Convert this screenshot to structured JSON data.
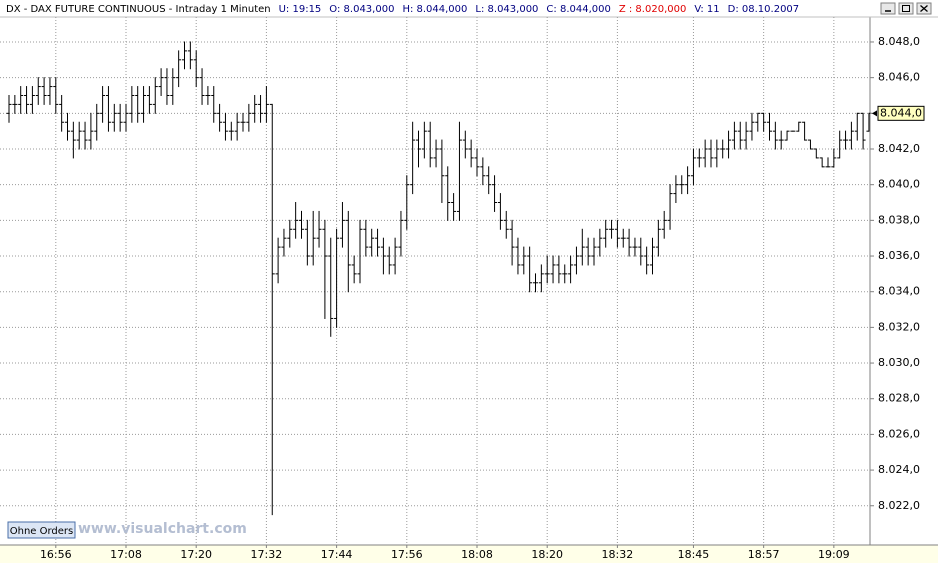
{
  "chart_data": {
    "type": "ohlc",
    "title": "DX - DAX FUTURE CONTINUOUS - Intraday 1 Minuten",
    "info": [
      {
        "text": "U: 19:15",
        "color": "#000080"
      },
      {
        "text": "O: 8.043,000",
        "color": "#000080"
      },
      {
        "text": "H: 8.044,000",
        "color": "#000080"
      },
      {
        "text": "L: 8.043,000",
        "color": "#000080"
      },
      {
        "text": "C: 8.044,000",
        "color": "#000080"
      },
      {
        "text": "Z : 8.020,000",
        "color": "#e00000"
      },
      {
        "text": "V: 11",
        "color": "#000080"
      },
      {
        "text": "D: 08.10.2007",
        "color": "#000080"
      }
    ],
    "watermark": "www.visualchart.com",
    "button": "Ohne Orders",
    "color": "#000000",
    "grid": true,
    "ylim": [
      8019.8,
      8049.4
    ],
    "yticks": [
      {
        "value": 8022,
        "label": "8.022,0"
      },
      {
        "value": 8024,
        "label": "8.024,0"
      },
      {
        "value": 8026,
        "label": "8.026,0"
      },
      {
        "value": 8028,
        "label": "8.028,0"
      },
      {
        "value": 8030,
        "label": "8.030,0"
      },
      {
        "value": 8032,
        "label": "8.032,0"
      },
      {
        "value": 8034,
        "label": "8.034,0"
      },
      {
        "value": 8036,
        "label": "8.036,0"
      },
      {
        "value": 8038,
        "label": "8.038,0"
      },
      {
        "value": 8040,
        "label": "8.040,0"
      },
      {
        "value": 8042,
        "label": "8.042,0"
      },
      {
        "value": 8044,
        "label": "8.044,0"
      },
      {
        "value": 8046,
        "label": "8.046,0"
      },
      {
        "value": 8048,
        "label": "8.048,0"
      }
    ],
    "last_price": {
      "value": 8044,
      "label": "8.044,0"
    },
    "categories": [
      null,
      null,
      null,
      null,
      null,
      null,
      null,
      null,
      "16:56",
      null,
      null,
      null,
      null,
      null,
      null,
      null,
      null,
      null,
      null,
      null,
      "17:08",
      null,
      null,
      null,
      null,
      null,
      null,
      null,
      null,
      null,
      null,
      null,
      "17:20",
      null,
      null,
      null,
      null,
      null,
      null,
      null,
      null,
      null,
      null,
      null,
      "17:32",
      null,
      null,
      null,
      null,
      null,
      null,
      null,
      null,
      null,
      null,
      null,
      "17:44",
      null,
      null,
      null,
      null,
      null,
      null,
      null,
      null,
      null,
      null,
      null,
      "17:56",
      null,
      null,
      null,
      null,
      null,
      null,
      null,
      null,
      null,
      null,
      null,
      "18:08",
      null,
      null,
      null,
      null,
      null,
      null,
      null,
      null,
      null,
      null,
      null,
      "18:20",
      null,
      null,
      null,
      null,
      null,
      null,
      null,
      null,
      null,
      null,
      null,
      "18:32",
      null,
      null,
      null,
      null,
      null,
      null,
      null,
      null,
      null,
      null,
      null,
      null,
      "18:45",
      null,
      null,
      null,
      null,
      null,
      null,
      null,
      null,
      null,
      null,
      null,
      "18:57",
      null,
      null,
      null,
      null,
      null,
      null,
      null,
      null,
      null,
      null,
      null,
      "19:09",
      null,
      null,
      null,
      null,
      null,
      null
    ],
    "bars": [
      [
        8044,
        8045,
        8043.5,
        8044.5
      ],
      [
        8044.5,
        8045,
        8044,
        8044.5
      ],
      [
        8044.5,
        8045.5,
        8044,
        8045
      ],
      [
        8045,
        8045.5,
        8044,
        8044.5
      ],
      [
        8044.5,
        8045.5,
        8044,
        8045
      ],
      [
        8045,
        8046,
        8044.5,
        8045.5
      ],
      [
        8045.5,
        8046,
        8044.5,
        8045
      ],
      [
        8045,
        8046,
        8044.5,
        8045.5
      ],
      [
        8045.5,
        8046,
        8044,
        8044.5
      ],
      [
        8044.5,
        8045,
        8043,
        8043.5
      ],
      [
        8043.5,
        8044,
        8042.5,
        8043
      ],
      [
        8043,
        8043.5,
        8041.5,
        8042.5
      ],
      [
        8042.5,
        8043.5,
        8042,
        8043
      ],
      [
        8043,
        8043.5,
        8042,
        8042.5
      ],
      [
        8042.5,
        8044,
        8042,
        8043
      ],
      [
        8043,
        8044.5,
        8042.5,
        8044
      ],
      [
        8044,
        8045.5,
        8043.5,
        8045
      ],
      [
        8045,
        8045.5,
        8043,
        8043.5
      ],
      [
        8043.5,
        8044.5,
        8043,
        8044
      ],
      [
        8044,
        8044.5,
        8043,
        8043.5
      ],
      [
        8043.5,
        8044.5,
        8043,
        8044
      ],
      [
        8044,
        8045.5,
        8043.5,
        8045
      ],
      [
        8045,
        8045.5,
        8043.5,
        8044
      ],
      [
        8044,
        8045.5,
        8043.5,
        8045
      ],
      [
        8045,
        8045.5,
        8044,
        8044.5
      ],
      [
        8044.5,
        8046,
        8044,
        8045.5
      ],
      [
        8045.5,
        8046.5,
        8045,
        8046
      ],
      [
        8046,
        8046.5,
        8044.5,
        8045
      ],
      [
        8045,
        8046.5,
        8044.5,
        8046
      ],
      [
        8046,
        8047.5,
        8045.5,
        8047
      ],
      [
        8047,
        8048,
        8046.5,
        8047.5
      ],
      [
        8047.5,
        8048,
        8046.5,
        8047
      ],
      [
        8047,
        8047.5,
        8045.5,
        8046
      ],
      [
        8046,
        8046.5,
        8044.5,
        8045
      ],
      [
        8045,
        8045.5,
        8044.5,
        8045
      ],
      [
        8045,
        8045.5,
        8043.5,
        8044
      ],
      [
        8044,
        8044.5,
        8043,
        8043.5
      ],
      [
        8043.5,
        8044,
        8042.5,
        8043
      ],
      [
        8043,
        8043.5,
        8042.5,
        8043
      ],
      [
        8043,
        8044,
        8042.5,
        8043.5
      ],
      [
        8043.5,
        8044,
        8043,
        8043.5
      ],
      [
        8043.5,
        8044.5,
        8043,
        8044
      ],
      [
        8044,
        8045,
        8043.5,
        8044.5
      ],
      [
        8044.5,
        8045,
        8043.5,
        8044
      ],
      [
        8044,
        8045.5,
        8043.5,
        8044.5
      ],
      [
        8044.5,
        8044.5,
        8021.5,
        8035
      ],
      [
        8035,
        8037,
        8034.5,
        8036.5
      ],
      [
        8036.5,
        8037.5,
        8036,
        8037
      ],
      [
        8037,
        8038,
        8036.5,
        8037.5
      ],
      [
        8037.5,
        8039,
        8037,
        8038
      ],
      [
        8038,
        8038.5,
        8037,
        8037.5
      ],
      [
        8037.5,
        8038,
        8035.5,
        8036
      ],
      [
        8036,
        8038.5,
        8035.5,
        8037
      ],
      [
        8037,
        8038.5,
        8036.5,
        8037.5
      ],
      [
        8037.5,
        8038,
        8032.5,
        8036
      ],
      [
        8036,
        8037,
        8031.5,
        8032.5
      ],
      [
        8032.5,
        8037.5,
        8032,
        8037
      ],
      [
        8037,
        8039,
        8036.5,
        8038
      ],
      [
        8038,
        8038.5,
        8034,
        8035.5
      ],
      [
        8035.5,
        8036,
        8034.5,
        8035
      ],
      [
        8035,
        8038,
        8034.5,
        8037.5
      ],
      [
        8037.5,
        8038,
        8036,
        8036.5
      ],
      [
        8036.5,
        8037.5,
        8036,
        8037
      ],
      [
        8037,
        8037.5,
        8036,
        8036.5
      ],
      [
        8036.5,
        8037,
        8035,
        8036
      ],
      [
        8036,
        8036.5,
        8035,
        8035.5
      ],
      [
        8035.5,
        8037,
        8035,
        8036.5
      ],
      [
        8036.5,
        8038.5,
        8036,
        8038
      ],
      [
        8038,
        8040.5,
        8037.5,
        8040
      ],
      [
        8040,
        8043.5,
        8039.5,
        8042.5
      ],
      [
        8042.5,
        8043,
        8041,
        8042
      ],
      [
        8042,
        8043.5,
        8041.5,
        8043
      ],
      [
        8043,
        8043.5,
        8041,
        8041.5
      ],
      [
        8041.5,
        8042.5,
        8041,
        8042
      ],
      [
        8042,
        8042.5,
        8039,
        8040.5
      ],
      [
        8040.5,
        8041,
        8038,
        8039
      ],
      [
        8039,
        8039.5,
        8038,
        8038.5
      ],
      [
        8038.5,
        8043.5,
        8038,
        8042.5
      ],
      [
        8042.5,
        8043,
        8041.5,
        8042
      ],
      [
        8042,
        8042.5,
        8041,
        8041.5
      ],
      [
        8041.5,
        8042,
        8040.5,
        8041
      ],
      [
        8041,
        8041.5,
        8040,
        8040.5
      ],
      [
        8040.5,
        8041,
        8039.5,
        8040
      ],
      [
        8040,
        8040.5,
        8038.5,
        8039
      ],
      [
        8039,
        8039.5,
        8037.5,
        8038
      ],
      [
        8038,
        8038.5,
        8037,
        8037.5
      ],
      [
        8037.5,
        8038,
        8035.5,
        8036.5
      ],
      [
        8036.5,
        8037,
        8035,
        8035.5
      ],
      [
        8035.5,
        8036.5,
        8035,
        8036
      ],
      [
        8036,
        8036.5,
        8034,
        8034.5
      ],
      [
        8034.5,
        8035,
        8034,
        8034.5
      ],
      [
        8034.5,
        8035.5,
        8034,
        8035
      ],
      [
        8035,
        8036,
        8034.5,
        8035
      ],
      [
        8035,
        8036,
        8034.5,
        8035.5
      ],
      [
        8035.5,
        8036,
        8034.5,
        8035
      ],
      [
        8035,
        8035.5,
        8034.5,
        8035
      ],
      [
        8035,
        8036,
        8034.5,
        8035.5
      ],
      [
        8035.5,
        8036.5,
        8035,
        8036
      ],
      [
        8036,
        8037.5,
        8035.5,
        8036.5
      ],
      [
        8036.5,
        8037,
        8035.5,
        8036
      ],
      [
        8036,
        8037,
        8035.5,
        8036.5
      ],
      [
        8036.5,
        8037.5,
        8036,
        8037
      ],
      [
        8037,
        8038,
        8036.5,
        8037.5
      ],
      [
        8037.5,
        8038,
        8037,
        8037.5
      ],
      [
        8037.5,
        8038,
        8036.5,
        8037
      ],
      [
        8037,
        8037.5,
        8036.5,
        8037
      ],
      [
        8037,
        8037.5,
        8036,
        8036.5
      ],
      [
        8036.5,
        8037,
        8036,
        8036.5
      ],
      [
        8036.5,
        8037,
        8035.5,
        8036
      ],
      [
        8036,
        8036.5,
        8035,
        8035.5
      ],
      [
        8035.5,
        8037,
        8035,
        8036.5
      ],
      [
        8036.5,
        8038,
        8036,
        8037.5
      ],
      [
        8037.5,
        8038.5,
        8037,
        8038
      ],
      [
        8038,
        8040,
        8037.5,
        8039.5
      ],
      [
        8039.5,
        8040.5,
        8039,
        8040
      ],
      [
        8040,
        8040.5,
        8039.5,
        8040
      ],
      [
        8040,
        8041,
        8039.5,
        8040.5
      ],
      [
        8040.5,
        8042,
        8040,
        8041.5
      ],
      [
        8041.5,
        8042,
        8041,
        8041.5
      ],
      [
        8041.5,
        8042.5,
        8041,
        8042
      ],
      [
        8042,
        8042.5,
        8041,
        8041.5
      ],
      [
        8041.5,
        8042.5,
        8041,
        8042
      ],
      [
        8042,
        8042.5,
        8041.5,
        8042
      ],
      [
        8042,
        8043,
        8041.5,
        8042.5
      ],
      [
        8042.5,
        8043.5,
        8042,
        8043
      ],
      [
        8043,
        8043.5,
        8042,
        8042.5
      ],
      [
        8042.5,
        8043.5,
        8042,
        8043
      ],
      [
        8043,
        8044,
        8042.5,
        8043.5
      ],
      [
        8043.5,
        8044,
        8043,
        8044
      ],
      [
        8044,
        8044,
        8043,
        8043.5
      ],
      [
        8043.5,
        8044,
        8042.5,
        8043
      ],
      [
        8043,
        8043.5,
        8042,
        8042.5
      ],
      [
        8042.5,
        8043,
        8042,
        8042.5
      ],
      [
        8042.5,
        8043,
        8042.5,
        8043
      ],
      [
        8043,
        8043,
        8043,
        8043
      ],
      [
        8043,
        8043.5,
        8043,
        8043.5
      ],
      [
        8043.5,
        8043.5,
        8042.5,
        8042.5
      ],
      [
        8042.5,
        8042.5,
        8042,
        8042
      ],
      [
        8042,
        8042,
        8041.5,
        8041.5
      ],
      [
        8041.5,
        8041.5,
        8041,
        8041
      ],
      [
        8041,
        8041.5,
        8041,
        8041
      ],
      [
        8041,
        8042,
        8041,
        8041.5
      ],
      [
        8041.5,
        8043,
        8041.5,
        8042.5
      ],
      [
        8042.5,
        8043,
        8042,
        8042.5
      ],
      [
        8042.5,
        8043.5,
        8042,
        8043
      ],
      [
        8043,
        8044,
        8042.5,
        8044
      ],
      [
        8044,
        8044,
        8042,
        8042.5
      ],
      [
        8043,
        8044,
        8043,
        8044
      ]
    ]
  }
}
